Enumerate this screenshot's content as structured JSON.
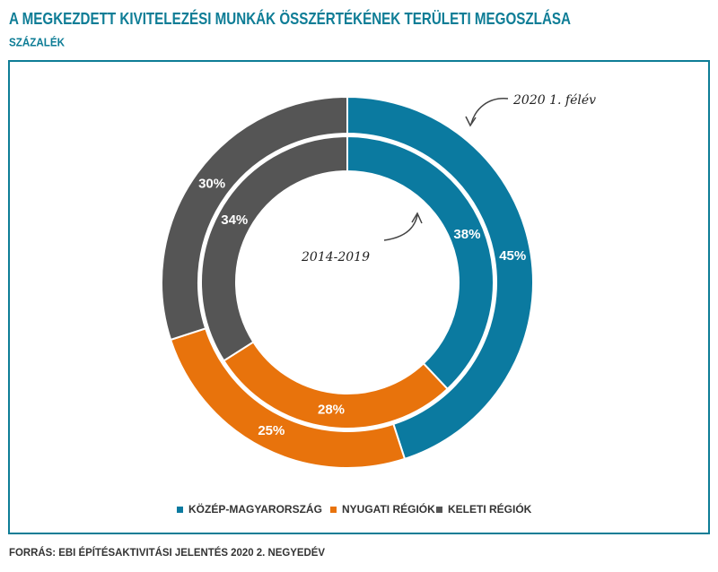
{
  "chart_data": {
    "type": "donut",
    "title": "A MEGKEZDETT KIVITELEZÉSI MUNKÁK ÖSSZÉRTÉKÉNEK TERÜLETI MEGOSZLÁSA",
    "subtitle": "SZÁZALÉK",
    "source": "FORRÁS: EBI ÉPÍTÉSAKTIVITÁSI JELENTÉS 2020 2. NEGYEDÉV",
    "categories": [
      "KÖZÉP-MAGYARORSZÁG",
      "NYUGATI RÉGIÓK",
      "KELETI RÉGIÓK"
    ],
    "colors": [
      "#0b7aa0",
      "#e8730c",
      "#555555"
    ],
    "series": [
      {
        "name": "2020 1. félév",
        "values": [
          45,
          25,
          30
        ],
        "value_labels": [
          "45%",
          "25%",
          "30%"
        ]
      },
      {
        "name": "2014-2019",
        "values": [
          38,
          28,
          34
        ],
        "value_labels": [
          "38%",
          "28%",
          "34%"
        ]
      }
    ]
  }
}
